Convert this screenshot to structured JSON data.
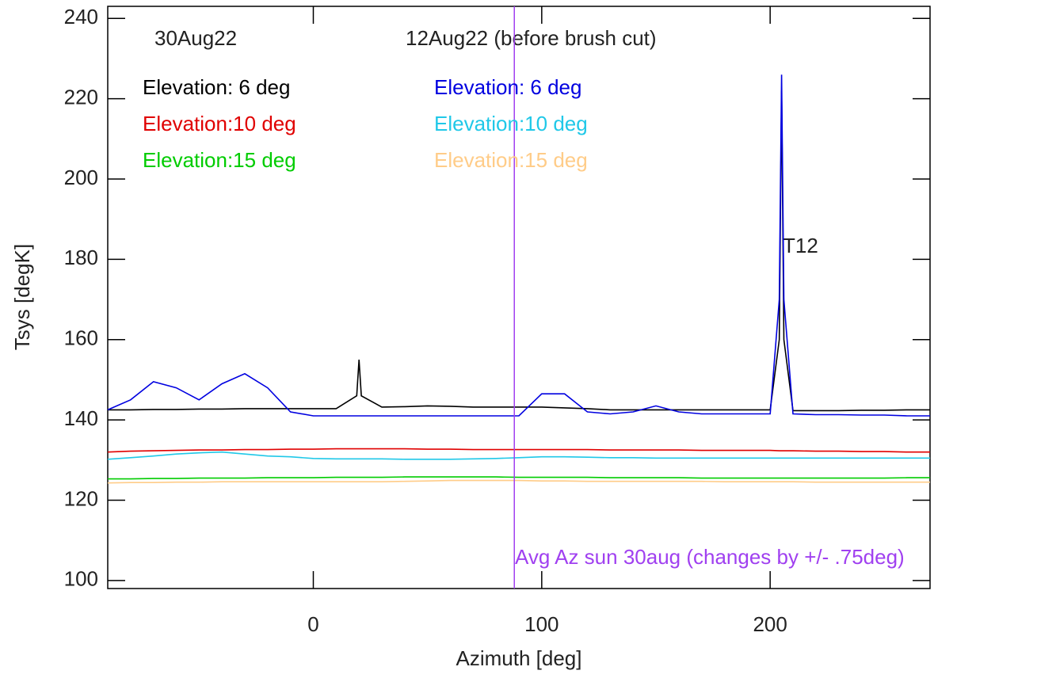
{
  "chart_data": {
    "type": "line",
    "x_label": "Azimuth [deg]",
    "y_label": "Tsys [degK]",
    "column_titles": [
      "30Aug22",
      "12Aug22 (before brush cut)"
    ],
    "xlim": [
      -90,
      270
    ],
    "xticks": [
      0,
      100,
      200
    ],
    "ylim": [
      98,
      243
    ],
    "yticks": [
      100,
      120,
      140,
      160,
      180,
      200,
      220,
      240
    ],
    "grid": false,
    "x": [
      -90,
      -80,
      -70,
      -60,
      -50,
      -40,
      -30,
      -20,
      -10,
      0,
      10,
      19,
      20,
      21,
      30,
      40,
      50,
      60,
      70,
      80,
      90,
      100,
      110,
      120,
      130,
      140,
      150,
      160,
      170,
      180,
      190,
      200,
      204,
      205,
      206,
      210,
      220,
      230,
      240,
      250,
      260,
      270
    ],
    "series": [
      {
        "name": "Elevation: 6 deg",
        "color": "#000000",
        "values": [
          142.5,
          142.5,
          142.6,
          142.6,
          142.7,
          142.7,
          142.8,
          142.8,
          142.8,
          142.8,
          142.8,
          146,
          155,
          146,
          143.2,
          143.3,
          143.5,
          143.4,
          143.2,
          143.2,
          143.2,
          143.2,
          143,
          142.8,
          142.5,
          142.5,
          142.5,
          142.5,
          142.5,
          142.5,
          142.5,
          142.5,
          160,
          222,
          160,
          142.3,
          142.3,
          142.3,
          142.4,
          142.4,
          142.5,
          142.5
        ]
      },
      {
        "name": "Elevation:10 deg",
        "color": "#e00000",
        "values": [
          132,
          132.2,
          132.3,
          132.4,
          132.5,
          132.5,
          132.6,
          132.6,
          132.7,
          132.7,
          132.8,
          132.8,
          132.8,
          132.8,
          132.8,
          132.8,
          132.7,
          132.7,
          132.6,
          132.6,
          132.6,
          132.6,
          132.6,
          132.6,
          132.5,
          132.5,
          132.5,
          132.5,
          132.4,
          132.4,
          132.4,
          132.4,
          132.3,
          132.3,
          132.3,
          132.3,
          132.2,
          132.2,
          132.1,
          132.1,
          132,
          132
        ]
      },
      {
        "name": "Elevation:15 deg",
        "color": "#00cc00",
        "values": [
          125.3,
          125.3,
          125.4,
          125.4,
          125.5,
          125.5,
          125.5,
          125.6,
          125.6,
          125.6,
          125.7,
          125.7,
          125.7,
          125.7,
          125.7,
          125.8,
          125.8,
          125.8,
          125.8,
          125.8,
          125.7,
          125.7,
          125.7,
          125.7,
          125.6,
          125.6,
          125.6,
          125.6,
          125.5,
          125.5,
          125.5,
          125.5,
          125.5,
          125.5,
          125.5,
          125.5,
          125.5,
          125.5,
          125.5,
          125.5,
          125.6,
          125.6
        ]
      },
      {
        "name": "Elevation: 6 deg",
        "color": "#0000e0",
        "values": [
          142.5,
          145,
          149.5,
          148,
          145,
          149,
          151.5,
          148,
          142,
          141,
          141,
          141,
          141,
          141,
          141,
          141,
          141,
          141,
          141,
          141,
          141,
          146.5,
          146.5,
          142,
          141.5,
          142,
          143.5,
          142,
          141.5,
          141.5,
          141.5,
          141.5,
          170,
          226,
          170,
          141.5,
          141.3,
          141.3,
          141.2,
          141.2,
          141,
          141
        ]
      },
      {
        "name": "Elevation:10 deg",
        "color": "#20c8e8",
        "values": [
          130.2,
          130.6,
          131,
          131.5,
          131.8,
          132,
          131.5,
          131,
          130.8,
          130.4,
          130.3,
          130.3,
          130.3,
          130.3,
          130.3,
          130.2,
          130.2,
          130.2,
          130.3,
          130.4,
          130.6,
          130.8,
          130.8,
          130.7,
          130.6,
          130.6,
          130.5,
          130.5,
          130.5,
          130.5,
          130.5,
          130.5,
          130.5,
          130.5,
          130.5,
          130.5,
          130.5,
          130.5,
          130.5,
          130.5,
          130.5,
          130.5
        ]
      },
      {
        "name": "Elevation:15 deg",
        "color": "#ffcc88",
        "values": [
          124.3,
          124.4,
          124.4,
          124.5,
          124.5,
          124.6,
          124.6,
          124.6,
          124.6,
          124.6,
          124.6,
          124.6,
          124.6,
          124.6,
          124.6,
          124.7,
          124.8,
          124.9,
          124.9,
          124.9,
          124.9,
          124.8,
          124.8,
          124.7,
          124.7,
          124.7,
          124.7,
          124.7,
          124.7,
          124.6,
          124.6,
          124.6,
          124.6,
          124.6,
          124.6,
          124.6,
          124.5,
          124.5,
          124.5,
          124.5,
          124.5,
          124.5
        ]
      }
    ],
    "vline": {
      "x": 88,
      "color": "#a040f0"
    },
    "annotations": [
      "T12",
      "Avg Az sun 30aug (changes by +/- .75deg)"
    ]
  }
}
